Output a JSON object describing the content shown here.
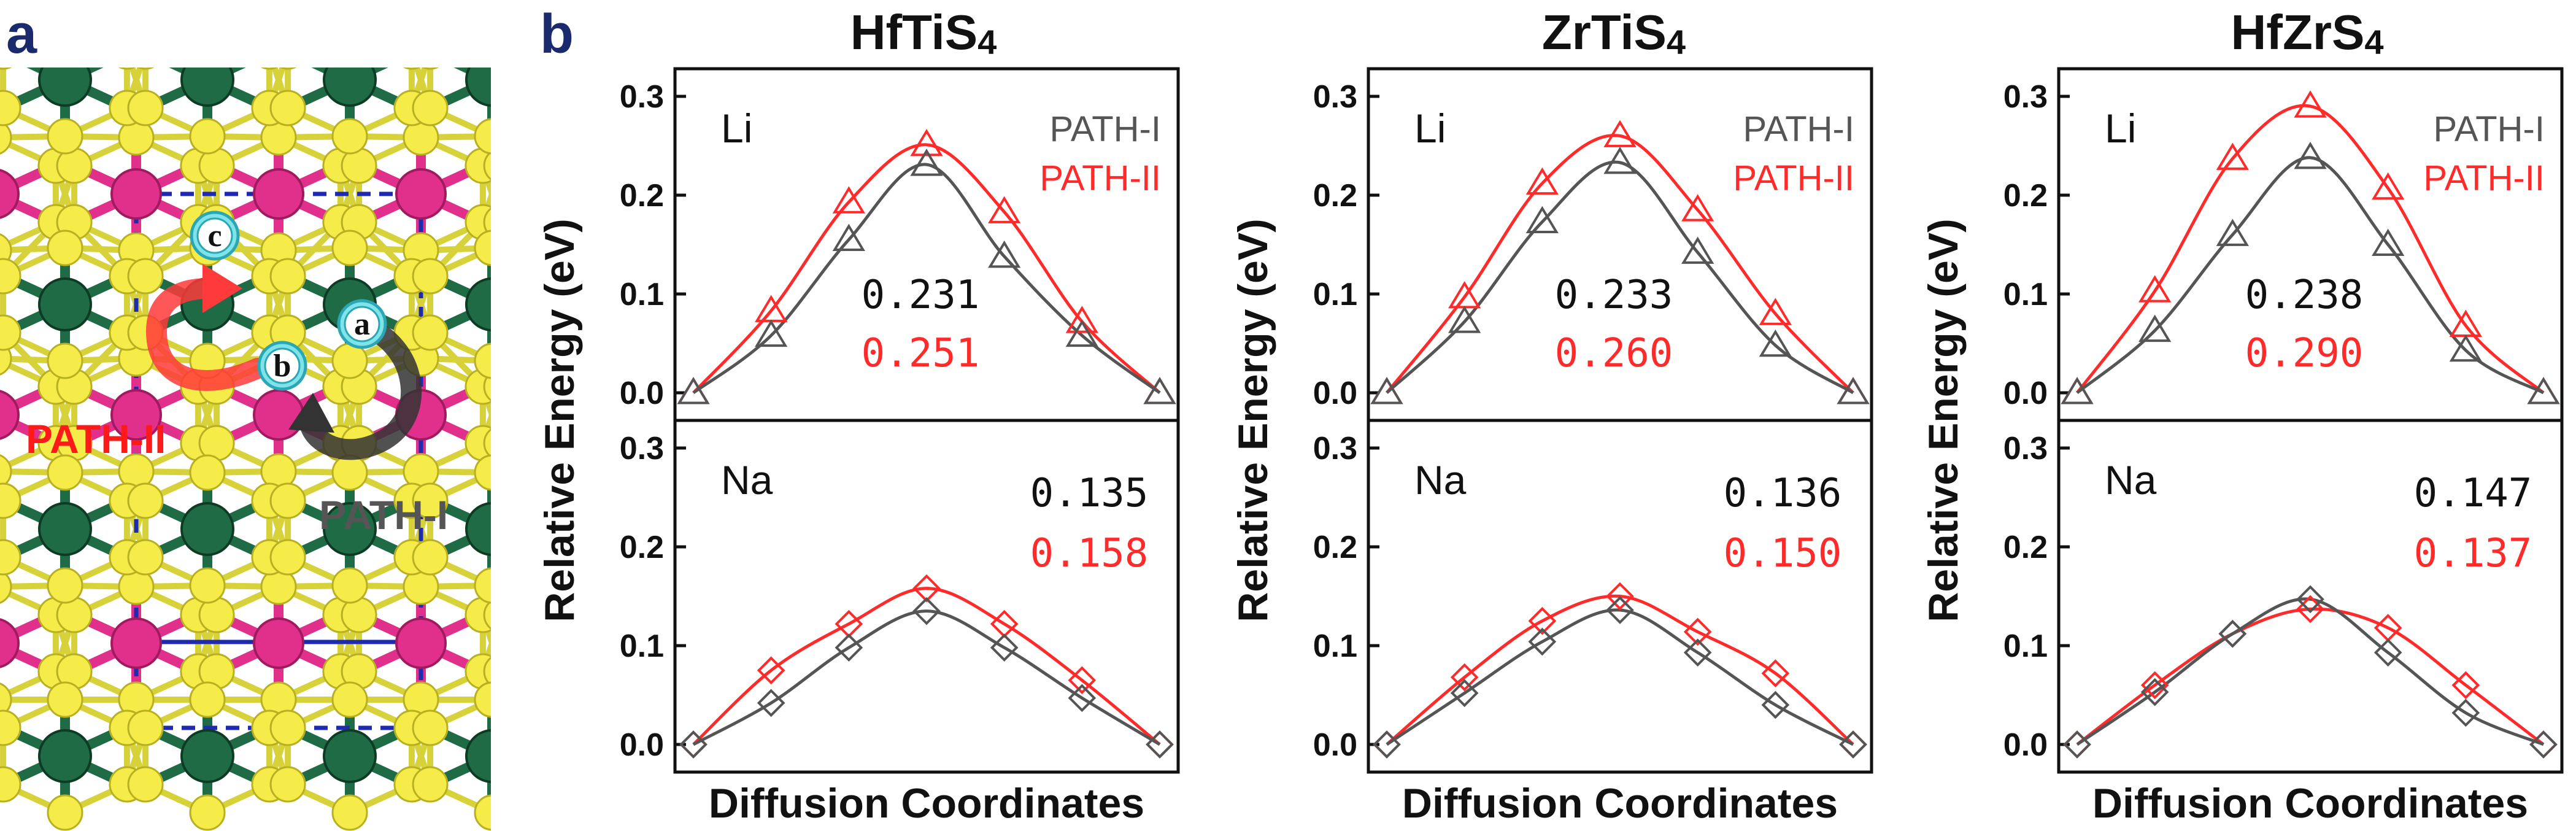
{
  "panel_a": {
    "label": "a",
    "path_labels": {
      "path1": "PATH-I",
      "path2": "PATH-II"
    },
    "sites": [
      "c",
      "a",
      "b"
    ]
  },
  "panel_b": {
    "label": "b",
    "ylabel": "Relative Energy (eV)",
    "xlabel": "Diffusion Coordinates",
    "legend": {
      "path1": "PATH-I",
      "path2": "PATH-II"
    }
  },
  "colors": {
    "path1": "#555555",
    "path2": "#ff2a2a",
    "panel_label": "#1a2a6c",
    "s_atom": "#f5ec4a",
    "m_atom": "#e0308c",
    "tm_atom": "#1f6b45",
    "ion": "#7fe3ea"
  },
  "chart_data": [
    {
      "type": "line",
      "title_main": "HfTiS",
      "title_sub": "4",
      "ion": "Li",
      "x": [
        0,
        1,
        2,
        3,
        4,
        5,
        6
      ],
      "ylim": [
        0,
        0.3
      ],
      "yticks": [
        "0.0",
        "0.1",
        "0.2",
        "0.3"
      ],
      "series": [
        {
          "name": "PATH-I",
          "marker": "triangle",
          "values": [
            0.0,
            0.058,
            0.155,
            0.231,
            0.138,
            0.058,
            0.0
          ],
          "barrier": "0.231"
        },
        {
          "name": "PATH-II",
          "marker": "triangle",
          "values": [
            0.0,
            0.083,
            0.193,
            0.251,
            0.183,
            0.072,
            0.0
          ],
          "barrier": "0.251"
        }
      ]
    },
    {
      "type": "line",
      "title_main": "HfTiS",
      "title_sub": "4",
      "ion": "Na",
      "x": [
        0,
        1,
        2,
        3,
        4,
        5,
        6
      ],
      "ylim": [
        0,
        0.3
      ],
      "yticks": [
        "0.0",
        "0.1",
        "0.2",
        "0.3"
      ],
      "series": [
        {
          "name": "PATH-I",
          "marker": "diamond",
          "values": [
            0.0,
            0.042,
            0.098,
            0.135,
            0.098,
            0.047,
            0.0
          ],
          "barrier": "0.135"
        },
        {
          "name": "PATH-II",
          "marker": "diamond",
          "values": [
            0.0,
            0.075,
            0.122,
            0.158,
            0.122,
            0.065,
            0.0
          ],
          "barrier": "0.158"
        }
      ]
    },
    {
      "type": "line",
      "title_main": "ZrTiS",
      "title_sub": "4",
      "ion": "Li",
      "x": [
        0,
        1,
        2,
        3,
        4,
        5,
        6
      ],
      "ylim": [
        0,
        0.3
      ],
      "yticks": [
        "0.0",
        "0.1",
        "0.2",
        "0.3"
      ],
      "series": [
        {
          "name": "PATH-I",
          "marker": "triangle",
          "values": [
            0.0,
            0.072,
            0.173,
            0.233,
            0.142,
            0.048,
            0.0
          ],
          "barrier": "0.233"
        },
        {
          "name": "PATH-II",
          "marker": "triangle",
          "values": [
            0.0,
            0.097,
            0.212,
            0.26,
            0.185,
            0.08,
            0.0
          ],
          "barrier": "0.260"
        }
      ]
    },
    {
      "type": "line",
      "title_main": "ZrTiS",
      "title_sub": "4",
      "ion": "Na",
      "x": [
        0,
        1,
        2,
        3,
        4,
        5,
        6
      ],
      "ylim": [
        0,
        0.3
      ],
      "yticks": [
        "0.0",
        "0.1",
        "0.2",
        "0.3"
      ],
      "series": [
        {
          "name": "PATH-I",
          "marker": "diamond",
          "values": [
            0.0,
            0.052,
            0.104,
            0.136,
            0.093,
            0.04,
            0.0
          ],
          "barrier": "0.136"
        },
        {
          "name": "PATH-II",
          "marker": "diamond",
          "values": [
            0.0,
            0.068,
            0.125,
            0.15,
            0.114,
            0.072,
            0.0
          ],
          "barrier": "0.150"
        }
      ]
    },
    {
      "type": "line",
      "title_main": "HfZrS",
      "title_sub": "4",
      "ion": "Li",
      "x": [
        0,
        1,
        2,
        3,
        4,
        5,
        6
      ],
      "ylim": [
        0,
        0.3
      ],
      "yticks": [
        "0.0",
        "0.1",
        "0.2",
        "0.3"
      ],
      "series": [
        {
          "name": "PATH-I",
          "marker": "triangle",
          "values": [
            0.0,
            0.063,
            0.16,
            0.238,
            0.15,
            0.043,
            0.0
          ],
          "barrier": "0.238"
        },
        {
          "name": "PATH-II",
          "marker": "triangle",
          "values": [
            0.0,
            0.103,
            0.237,
            0.29,
            0.207,
            0.068,
            0.0
          ],
          "barrier": "0.290"
        }
      ]
    },
    {
      "type": "line",
      "title_main": "HfZrS",
      "title_sub": "4",
      "ion": "Na",
      "x": [
        0,
        1,
        2,
        3,
        4,
        5,
        6
      ],
      "ylim": [
        0,
        0.3
      ],
      "yticks": [
        "0.0",
        "0.1",
        "0.2",
        "0.3"
      ],
      "series": [
        {
          "name": "PATH-I",
          "marker": "diamond",
          "values": [
            0.0,
            0.053,
            0.112,
            0.147,
            0.093,
            0.032,
            0.0
          ],
          "barrier": "0.147"
        },
        {
          "name": "PATH-II",
          "marker": "diamond",
          "values": [
            0.0,
            0.06,
            0.112,
            0.137,
            0.118,
            0.06,
            0.0
          ],
          "barrier": "0.137"
        }
      ]
    }
  ]
}
